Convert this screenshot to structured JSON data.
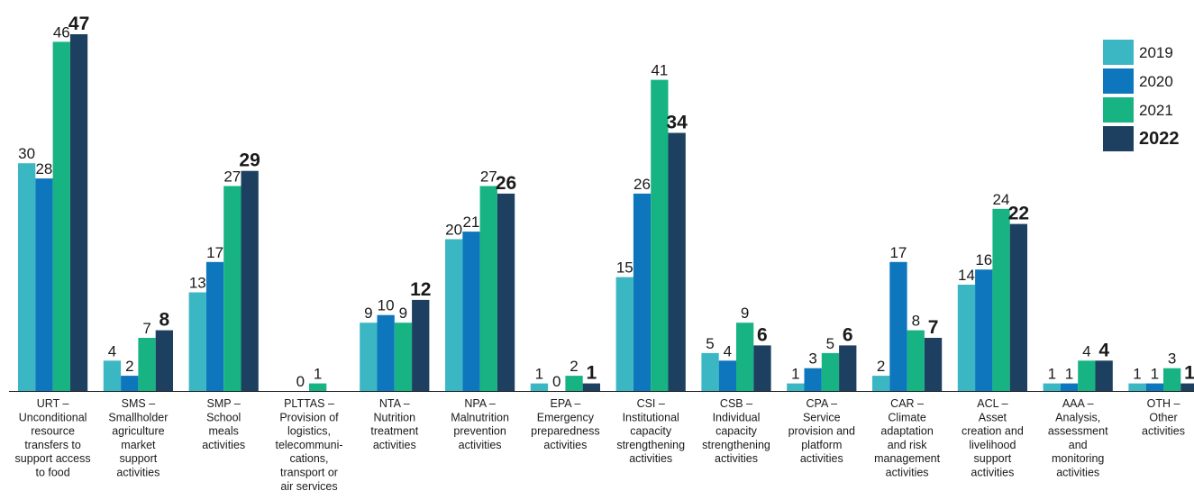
{
  "chart_data": {
    "type": "bar",
    "ylim": [
      0,
      47
    ],
    "grid": false,
    "legend_position": "top-right",
    "categories": [
      [
        "URT –",
        "Unconditional",
        "resource",
        "transfers to",
        "support access",
        "to food"
      ],
      [
        "SMS –",
        "Smallholder",
        "agriculture",
        "market",
        "support",
        "activities"
      ],
      [
        "SMP –",
        "School",
        "meals",
        "activities"
      ],
      [
        "PLTTAS –",
        "Provision of",
        "logistics,",
        "telecommuni-",
        "cations,",
        "transport or",
        "air services"
      ],
      [
        "NTA –",
        "Nutrition",
        "treatment",
        "activities"
      ],
      [
        "NPA –",
        "Malnutrition",
        "prevention",
        "activities"
      ],
      [
        "EPA –",
        "Emergency",
        "preparedness",
        "activities"
      ],
      [
        "CSI –",
        "Institutional",
        "capacity",
        "strengthening",
        "activities"
      ],
      [
        "CSB –",
        "Individual",
        "capacity",
        "strengthening",
        "activities"
      ],
      [
        "CPA –",
        "Service",
        "provision and",
        "platform",
        "activities"
      ],
      [
        "CAR –",
        "Climate",
        "adaptation",
        "and risk",
        "management",
        "activities"
      ],
      [
        "ACL –",
        "Asset",
        "creation and",
        "livelihood",
        "support",
        "activities"
      ],
      [
        "AAA –",
        "Analysis,",
        "assessment",
        "and",
        "monitoring",
        "activities"
      ],
      [
        "OTH –",
        "Other",
        "activities"
      ]
    ],
    "series": [
      {
        "name": "2019",
        "color": "#3bb7c4",
        "values": [
          30,
          4,
          13,
          null,
          9,
          20,
          1,
          15,
          5,
          1,
          2,
          14,
          1,
          1
        ]
      },
      {
        "name": "2020",
        "color": "#0d76bc",
        "values": [
          28,
          2,
          17,
          null,
          10,
          21,
          0,
          26,
          4,
          3,
          17,
          16,
          1,
          1
        ]
      },
      {
        "name": "2021",
        "color": "#18b383",
        "values": [
          46,
          7,
          27,
          1,
          9,
          27,
          2,
          41,
          9,
          5,
          8,
          24,
          4,
          3
        ]
      },
      {
        "name": "2022",
        "color": "#1d3f60",
        "values": [
          47,
          8,
          29,
          null,
          12,
          26,
          1,
          34,
          6,
          6,
          7,
          22,
          4,
          1
        ]
      }
    ],
    "zero_labels": [
      {
        "category": 3,
        "series": 1,
        "value": 0
      }
    ]
  }
}
